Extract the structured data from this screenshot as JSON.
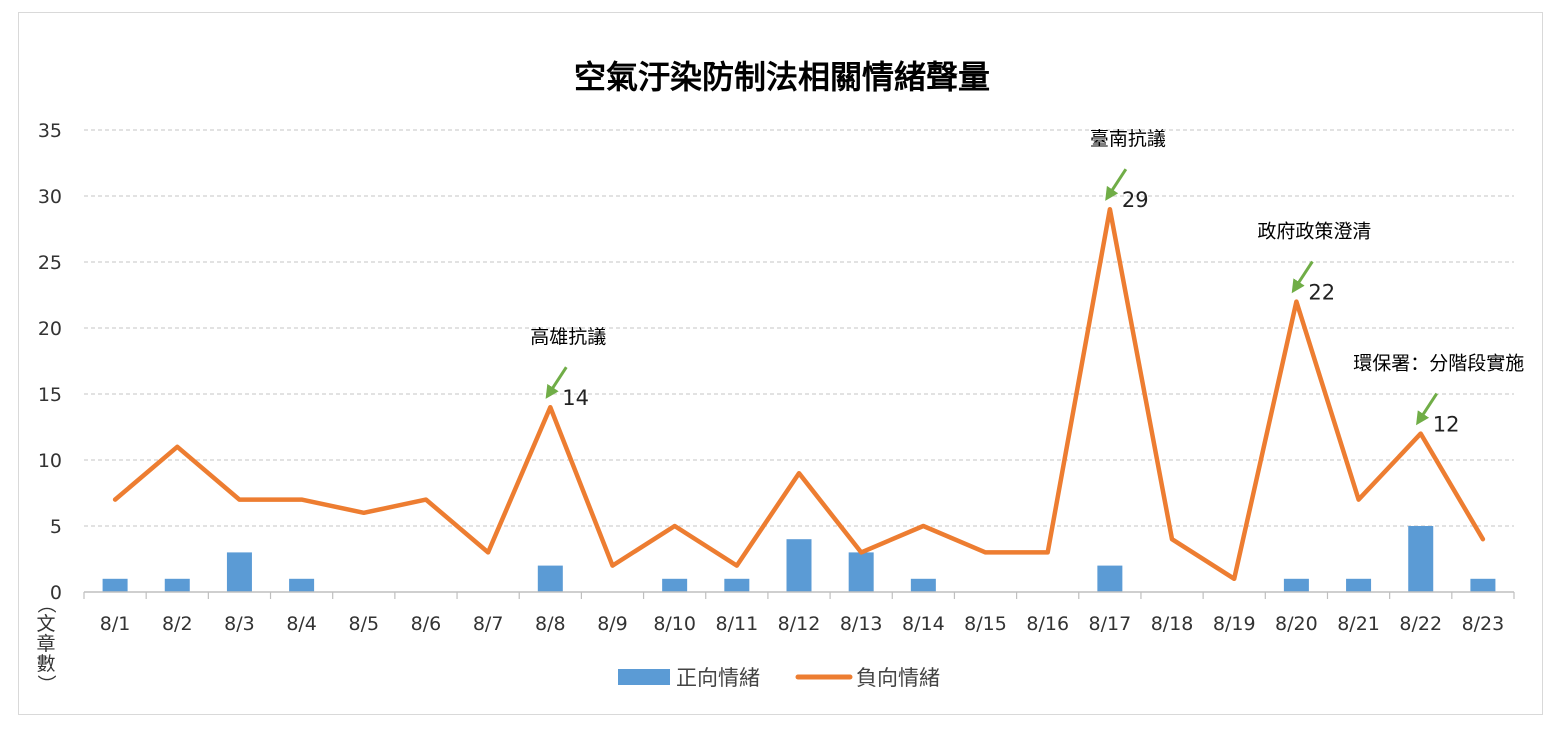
{
  "chart_data": {
    "type": "bar+line",
    "title": "空氣汙染防制法相關情緒聲量",
    "ylabel": "（文章數）",
    "ylim": [
      0,
      35
    ],
    "yticks": [
      0,
      5,
      10,
      15,
      20,
      25,
      30,
      35
    ],
    "grid": true,
    "legend_position": "bottom",
    "categories": [
      "8/1",
      "8/2",
      "8/3",
      "8/4",
      "8/5",
      "8/6",
      "8/7",
      "8/8",
      "8/9",
      "8/10",
      "8/11",
      "8/12",
      "8/13",
      "8/14",
      "8/15",
      "8/16",
      "8/17",
      "8/18",
      "8/19",
      "8/20",
      "8/21",
      "8/22",
      "8/23"
    ],
    "series": [
      {
        "name": "正向情緒",
        "type": "bar",
        "color": "#5b9bd5",
        "values": [
          1,
          1,
          3,
          1,
          0,
          0,
          0,
          2,
          0,
          1,
          1,
          4,
          3,
          1,
          0,
          0,
          2,
          0,
          0,
          1,
          1,
          5,
          1
        ]
      },
      {
        "name": "負向情緒",
        "type": "line",
        "color": "#ed7d31",
        "values": [
          7,
          11,
          7,
          7,
          6,
          7,
          3,
          14,
          2,
          5,
          2,
          9,
          3,
          5,
          3,
          3,
          29,
          4,
          1,
          22,
          7,
          12,
          4
        ]
      }
    ],
    "annotations": [
      {
        "category": "8/8",
        "text": "高雄抗議",
        "value_label": "14"
      },
      {
        "category": "8/17",
        "text": "臺南抗議",
        "value_label": "29"
      },
      {
        "category": "8/20",
        "text": "政府政策澄清",
        "value_label": "22"
      },
      {
        "category": "8/22",
        "text": "環保署：分階段實施",
        "value_label": "12"
      }
    ],
    "arrow_color": "#70ad47"
  }
}
